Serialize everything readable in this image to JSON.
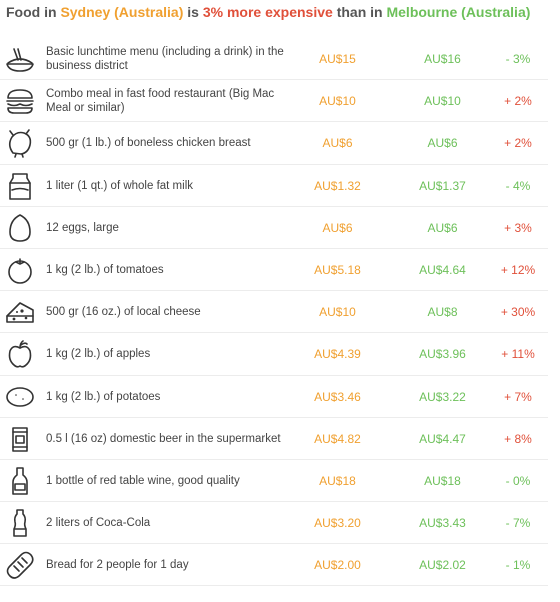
{
  "title": {
    "p1": "Food in ",
    "city1": "Sydney (Australia)",
    "p2": " is ",
    "pct": "3% more expensive",
    "p3": " than in ",
    "city2": "Melbourne (Australia)"
  },
  "colors": {
    "city1": "#f0a030",
    "city2": "#6dc05a",
    "up": "#e0503a",
    "down": "#6dc05a"
  },
  "rows": [
    {
      "icon": "lunch-bowl-icon",
      "desc": "Basic lunchtime menu (including a drink) in the business district",
      "v1": "AU$15",
      "v2": "AU$16",
      "diff": "- 3%",
      "dir": "down"
    },
    {
      "icon": "burger-icon",
      "desc": "Combo meal in fast food restaurant (Big Mac Meal or similar)",
      "v1": "AU$10",
      "v2": "AU$10",
      "diff": "+ 2%",
      "dir": "up"
    },
    {
      "icon": "chicken-icon",
      "desc": "500 gr (1 lb.) of boneless chicken breast",
      "v1": "AU$6",
      "v2": "AU$6",
      "diff": "+ 2%",
      "dir": "up"
    },
    {
      "icon": "milk-carton-icon",
      "desc": "1 liter (1 qt.) of whole fat milk",
      "v1": "AU$1.32",
      "v2": "AU$1.37",
      "diff": "- 4%",
      "dir": "down"
    },
    {
      "icon": "egg-icon",
      "desc": "12 eggs, large",
      "v1": "AU$6",
      "v2": "AU$6",
      "diff": "+ 3%",
      "dir": "up"
    },
    {
      "icon": "tomato-icon",
      "desc": "1 kg (2 lb.) of tomatoes",
      "v1": "AU$5.18",
      "v2": "AU$4.64",
      "diff": "+ 12%",
      "dir": "up"
    },
    {
      "icon": "cheese-icon",
      "desc": "500 gr (16 oz.) of local cheese",
      "v1": "AU$10",
      "v2": "AU$8",
      "diff": "+ 30%",
      "dir": "up"
    },
    {
      "icon": "apple-icon",
      "desc": "1 kg (2 lb.) of apples",
      "v1": "AU$4.39",
      "v2": "AU$3.96",
      "diff": "+ 11%",
      "dir": "up"
    },
    {
      "icon": "potato-icon",
      "desc": "1 kg (2 lb.) of potatoes",
      "v1": "AU$3.46",
      "v2": "AU$3.22",
      "diff": "+ 7%",
      "dir": "up"
    },
    {
      "icon": "beer-can-icon",
      "desc": "0.5 l (16 oz) domestic beer in the supermarket",
      "v1": "AU$4.82",
      "v2": "AU$4.47",
      "diff": "+ 8%",
      "dir": "up"
    },
    {
      "icon": "wine-bottle-icon",
      "desc": "1 bottle of red table wine, good quality",
      "v1": "AU$18",
      "v2": "AU$18",
      "diff": "- 0%",
      "dir": "down"
    },
    {
      "icon": "cola-bottle-icon",
      "desc": "2 liters of Coca-Cola",
      "v1": "AU$3.20",
      "v2": "AU$3.43",
      "diff": "- 7%",
      "dir": "down"
    },
    {
      "icon": "bread-icon",
      "desc": "Bread for 2 people for 1 day",
      "v1": "AU$2.00",
      "v2": "AU$2.02",
      "diff": "- 1%",
      "dir": "down"
    }
  ]
}
